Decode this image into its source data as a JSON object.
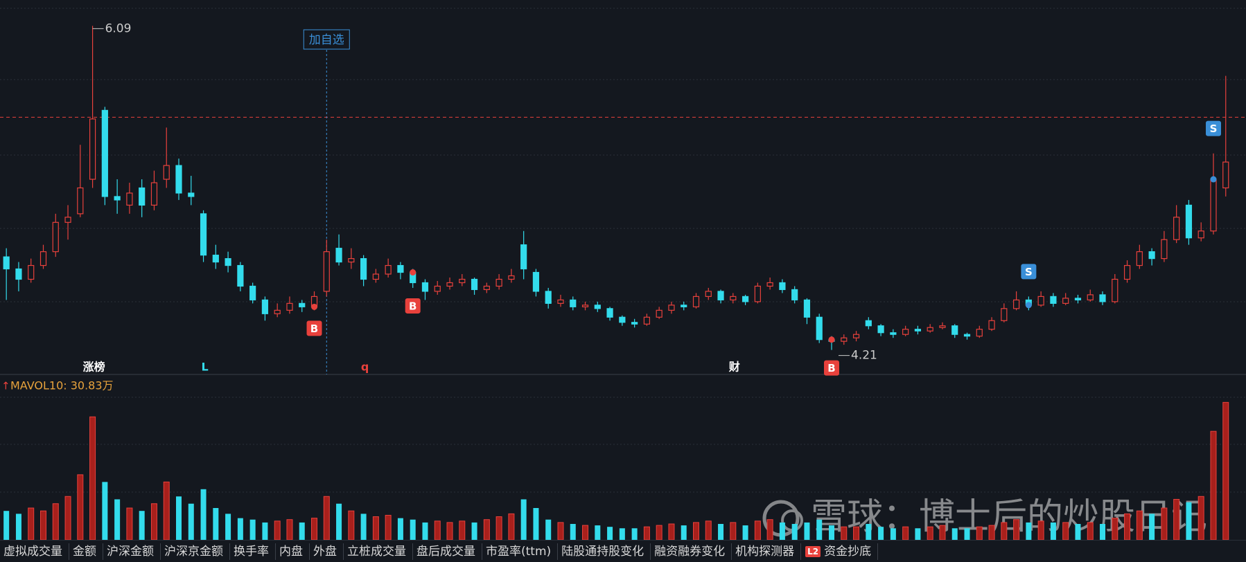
{
  "chart_data": {
    "type": "candlestick",
    "ylim": [
      4.1,
      6.24
    ],
    "candles": [
      [
        4.75,
        4.8,
        4.5,
        4.68
      ],
      [
        4.68,
        4.72,
        4.55,
        4.62
      ],
      [
        4.62,
        4.74,
        4.6,
        4.7
      ],
      [
        4.7,
        4.82,
        4.68,
        4.78
      ],
      [
        4.78,
        5.0,
        4.75,
        4.95
      ],
      [
        4.95,
        5.05,
        4.85,
        4.98
      ],
      [
        5.0,
        5.4,
        4.98,
        5.15
      ],
      [
        5.2,
        6.09,
        5.15,
        5.55
      ],
      [
        5.6,
        5.62,
        5.05,
        5.1
      ],
      [
        5.1,
        5.2,
        5.0,
        5.08
      ],
      [
        5.05,
        5.18,
        5.0,
        5.12
      ],
      [
        5.15,
        5.2,
        4.98,
        5.05
      ],
      [
        5.05,
        5.25,
        5.02,
        5.18
      ],
      [
        5.2,
        5.5,
        5.15,
        5.28
      ],
      [
        5.28,
        5.32,
        5.08,
        5.12
      ],
      [
        5.12,
        5.22,
        5.05,
        5.1
      ],
      [
        5.0,
        5.02,
        4.72,
        4.76
      ],
      [
        4.76,
        4.82,
        4.68,
        4.72
      ],
      [
        4.74,
        4.78,
        4.66,
        4.7
      ],
      [
        4.7,
        4.72,
        4.55,
        4.58
      ],
      [
        4.58,
        4.6,
        4.48,
        4.5
      ],
      [
        4.5,
        4.52,
        4.38,
        4.42
      ],
      [
        4.42,
        4.48,
        4.4,
        4.44
      ],
      [
        4.44,
        4.52,
        4.42,
        4.48
      ],
      [
        4.48,
        4.5,
        4.43,
        4.46
      ],
      [
        4.46,
        4.55,
        4.44,
        4.52
      ],
      [
        4.55,
        4.85,
        4.52,
        4.78
      ],
      [
        4.8,
        4.88,
        4.7,
        4.72
      ],
      [
        4.72,
        4.8,
        4.68,
        4.74
      ],
      [
        4.74,
        4.76,
        4.58,
        4.62
      ],
      [
        4.62,
        4.68,
        4.6,
        4.65
      ],
      [
        4.65,
        4.74,
        4.63,
        4.7
      ],
      [
        4.7,
        4.72,
        4.62,
        4.66
      ],
      [
        4.66,
        4.68,
        4.57,
        4.6
      ],
      [
        4.6,
        4.62,
        4.5,
        4.55
      ],
      [
        4.55,
        4.61,
        4.53,
        4.58
      ],
      [
        4.58,
        4.63,
        4.56,
        4.6
      ],
      [
        4.6,
        4.65,
        4.58,
        4.62
      ],
      [
        4.62,
        4.63,
        4.53,
        4.56
      ],
      [
        4.56,
        4.6,
        4.54,
        4.58
      ],
      [
        4.58,
        4.65,
        4.56,
        4.62
      ],
      [
        4.62,
        4.68,
        4.6,
        4.64
      ],
      [
        4.82,
        4.9,
        4.62,
        4.68
      ],
      [
        4.66,
        4.68,
        4.52,
        4.55
      ],
      [
        4.55,
        4.57,
        4.45,
        4.48
      ],
      [
        4.48,
        4.53,
        4.46,
        4.5
      ],
      [
        4.5,
        4.52,
        4.44,
        4.46
      ],
      [
        4.46,
        4.49,
        4.44,
        4.47
      ],
      [
        4.47,
        4.49,
        4.43,
        4.45
      ],
      [
        4.45,
        4.46,
        4.38,
        4.4
      ],
      [
        4.4,
        4.41,
        4.35,
        4.37
      ],
      [
        4.37,
        4.39,
        4.34,
        4.36
      ],
      [
        4.36,
        4.42,
        4.35,
        4.4
      ],
      [
        4.4,
        4.46,
        4.39,
        4.44
      ],
      [
        4.44,
        4.49,
        4.42,
        4.47
      ],
      [
        4.47,
        4.49,
        4.44,
        4.46
      ],
      [
        4.46,
        4.54,
        4.45,
        4.52
      ],
      [
        4.52,
        4.57,
        4.5,
        4.55
      ],
      [
        4.55,
        4.56,
        4.48,
        4.5
      ],
      [
        4.5,
        4.54,
        4.48,
        4.52
      ],
      [
        4.52,
        4.53,
        4.47,
        4.49
      ],
      [
        4.49,
        4.6,
        4.48,
        4.58
      ],
      [
        4.58,
        4.63,
        4.56,
        4.6
      ],
      [
        4.6,
        4.62,
        4.54,
        4.56
      ],
      [
        4.56,
        4.58,
        4.48,
        4.5
      ],
      [
        4.5,
        4.51,
        4.36,
        4.4
      ],
      [
        4.4,
        4.42,
        4.25,
        4.27
      ],
      [
        4.27,
        4.29,
        4.21,
        4.26
      ],
      [
        4.26,
        4.3,
        4.24,
        4.28
      ],
      [
        4.28,
        4.32,
        4.26,
        4.3
      ],
      [
        4.38,
        4.4,
        4.33,
        4.35
      ],
      [
        4.35,
        4.36,
        4.29,
        4.31
      ],
      [
        4.31,
        4.33,
        4.28,
        4.3
      ],
      [
        4.3,
        4.35,
        4.29,
        4.33
      ],
      [
        4.33,
        4.35,
        4.3,
        4.32
      ],
      [
        4.32,
        4.36,
        4.31,
        4.34
      ],
      [
        4.34,
        4.37,
        4.33,
        4.35
      ],
      [
        4.35,
        4.36,
        4.28,
        4.3
      ],
      [
        4.3,
        4.31,
        4.27,
        4.29
      ],
      [
        4.29,
        4.35,
        4.28,
        4.33
      ],
      [
        4.33,
        4.4,
        4.32,
        4.38
      ],
      [
        4.38,
        4.48,
        4.37,
        4.45
      ],
      [
        4.45,
        4.55,
        4.44,
        4.5
      ],
      [
        4.5,
        4.52,
        4.44,
        4.47
      ],
      [
        4.47,
        4.55,
        4.46,
        4.52
      ],
      [
        4.52,
        4.54,
        4.46,
        4.48
      ],
      [
        4.48,
        4.54,
        4.47,
        4.51
      ],
      [
        4.51,
        4.53,
        4.48,
        4.5
      ],
      [
        4.5,
        4.56,
        4.49,
        4.53
      ],
      [
        4.53,
        4.55,
        4.47,
        4.49
      ],
      [
        4.49,
        4.65,
        4.48,
        4.62
      ],
      [
        4.62,
        4.73,
        4.6,
        4.7
      ],
      [
        4.7,
        4.82,
        4.68,
        4.78
      ],
      [
        4.78,
        4.8,
        4.7,
        4.74
      ],
      [
        4.74,
        4.9,
        4.72,
        4.85
      ],
      [
        4.85,
        5.05,
        4.83,
        4.98
      ],
      [
        5.05,
        5.08,
        4.82,
        4.86
      ],
      [
        4.86,
        4.95,
        4.84,
        4.9
      ],
      [
        4.9,
        5.35,
        4.88,
        5.2
      ],
      [
        5.15,
        5.8,
        5.1,
        5.3
      ]
    ],
    "volume_ylim": [
      0,
      110
    ],
    "volume": [
      20,
      18,
      22,
      20,
      25,
      30,
      45,
      85,
      40,
      28,
      22,
      20,
      25,
      40,
      30,
      25,
      35,
      22,
      18,
      15,
      14,
      12,
      13,
      14,
      12,
      15,
      30,
      25,
      20,
      18,
      16,
      17,
      15,
      14,
      12,
      13,
      12,
      13,
      12,
      14,
      16,
      18,
      28,
      22,
      14,
      12,
      11,
      10,
      10,
      9,
      8,
      8,
      9,
      10,
      11,
      10,
      12,
      13,
      11,
      12,
      10,
      13,
      14,
      12,
      11,
      12,
      14,
      10,
      9,
      9,
      11,
      9,
      8,
      9,
      8,
      9,
      10,
      8,
      8,
      9,
      10,
      12,
      14,
      12,
      13,
      12,
      12,
      11,
      12,
      11,
      15,
      18,
      20,
      18,
      22,
      28,
      26,
      30,
      75,
      95
    ],
    "signals": [
      null,
      null,
      null,
      null,
      null,
      null,
      null,
      null,
      null,
      null,
      null,
      null,
      null,
      null,
      null,
      null,
      null,
      null,
      null,
      null,
      null,
      null,
      null,
      null,
      null,
      "B",
      null,
      null,
      null,
      null,
      null,
      null,
      null,
      "B",
      null,
      null,
      null,
      null,
      null,
      null,
      null,
      null,
      null,
      null,
      null,
      null,
      null,
      null,
      null,
      null,
      null,
      null,
      null,
      null,
      null,
      null,
      null,
      null,
      null,
      null,
      null,
      null,
      null,
      null,
      null,
      null,
      null,
      "B",
      null,
      null,
      null,
      null,
      null,
      null,
      null,
      null,
      null,
      null,
      null,
      null,
      null,
      null,
      null,
      "S",
      null,
      null,
      null,
      null,
      null,
      null,
      null,
      null,
      null,
      null,
      null,
      null,
      null,
      null,
      "S",
      null
    ],
    "tags": [
      null,
      null,
      null,
      null,
      null,
      null,
      null,
      "涨榜",
      null,
      null,
      null,
      null,
      null,
      null,
      null,
      null,
      "L",
      null,
      null,
      null,
      null,
      null,
      null,
      null,
      null,
      null,
      null,
      null,
      null,
      "q",
      null,
      null,
      null,
      null,
      null,
      null,
      null,
      null,
      null,
      null,
      null,
      null,
      null,
      null,
      null,
      null,
      null,
      null,
      null,
      null,
      null,
      null,
      null,
      null,
      null,
      null,
      null,
      null,
      null,
      "财",
      null,
      null,
      null,
      null,
      null,
      null,
      null,
      null,
      null,
      null,
      null,
      null,
      null,
      null,
      null,
      null,
      null,
      null,
      null,
      null,
      null,
      null,
      null,
      null,
      null,
      null,
      null,
      null,
      null,
      null,
      null,
      null,
      null,
      null,
      null,
      null,
      null,
      null,
      null,
      null
    ],
    "high_index": 7,
    "low_index": 67,
    "reference_line": 5.56,
    "add_watchlist": "加自选",
    "crosshair_index": 26,
    "mavol_label": "MAVOL10: 30.83万",
    "up_color": "#e8413c",
    "down_color": "#33dcec",
    "watermark": "雪球：博士后的炒股日记",
    "tabs": [
      "虚拟成交量",
      "金额",
      "沪深金额",
      "沪深京金额",
      "换手率",
      "内盘",
      "外盘",
      "立桩成交量",
      "盘后成交量",
      "市盈率(ttm)",
      "陆股通持股变化",
      "融资融券变化",
      "机构探测器",
      "资金抄底"
    ],
    "tab_badge": "L2"
  }
}
